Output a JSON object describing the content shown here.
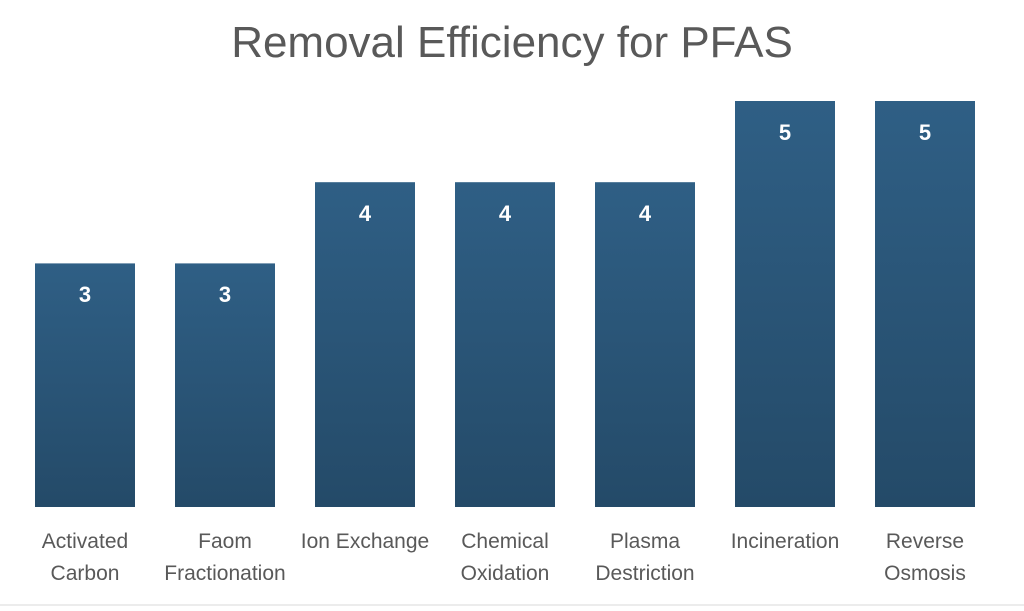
{
  "chart_data": {
    "type": "bar",
    "title": "Removal Efficiency for PFAS",
    "categories": [
      "Activated Carbon",
      "Faom Fractionation",
      "Ion Exchange",
      "Chemical Oxidation",
      "Plasma Destriction",
      "Incineration",
      "Reverse Osmosis"
    ],
    "values": [
      3,
      3,
      4,
      4,
      4,
      5,
      5
    ],
    "color": "#2a5678",
    "ylim": [
      0,
      5
    ]
  }
}
